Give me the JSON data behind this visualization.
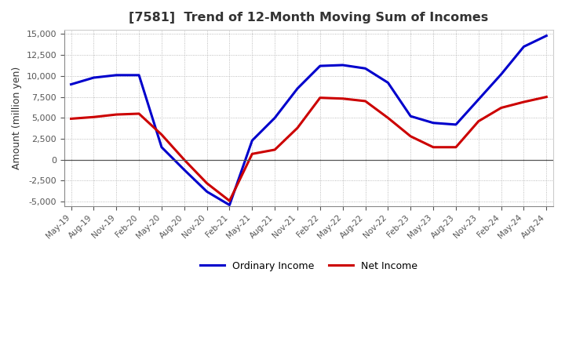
{
  "title": "[7581]  Trend of 12-Month Moving Sum of Incomes",
  "ylabel": "Amount (million yen)",
  "ylim": [
    -5500,
    15500
  ],
  "yticks": [
    -5000,
    -2500,
    0,
    2500,
    5000,
    7500,
    10000,
    12500,
    15000
  ],
  "ordinary_income_color": "#0000cc",
  "net_income_color": "#cc0000",
  "background_color": "#ffffff",
  "grid_color": "#aaaaaa",
  "legend_labels": [
    "Ordinary Income",
    "Net Income"
  ],
  "x_labels": [
    "May-19",
    "Aug-19",
    "Nov-19",
    "Feb-20",
    "May-20",
    "Aug-20",
    "Nov-20",
    "Feb-21",
    "May-21",
    "Aug-21",
    "Nov-21",
    "Feb-22",
    "May-22",
    "Aug-22",
    "Nov-22",
    "Feb-23",
    "May-23",
    "Aug-23",
    "Nov-23",
    "Feb-24",
    "May-24",
    "Aug-24"
  ],
  "ordinary_income": [
    9000,
    9800,
    10100,
    10100,
    1500,
    -1200,
    -3800,
    -5400,
    2300,
    5000,
    8500,
    11200,
    11300,
    10900,
    9200,
    5200,
    4400,
    4200,
    7200,
    10200,
    13500,
    14800
  ],
  "net_income": [
    4900,
    5100,
    5400,
    5500,
    3000,
    0,
    -2800,
    -4900,
    700,
    1200,
    3800,
    7400,
    7300,
    7000,
    5000,
    2800,
    1500,
    1500,
    4600,
    6200,
    6900,
    7500
  ]
}
